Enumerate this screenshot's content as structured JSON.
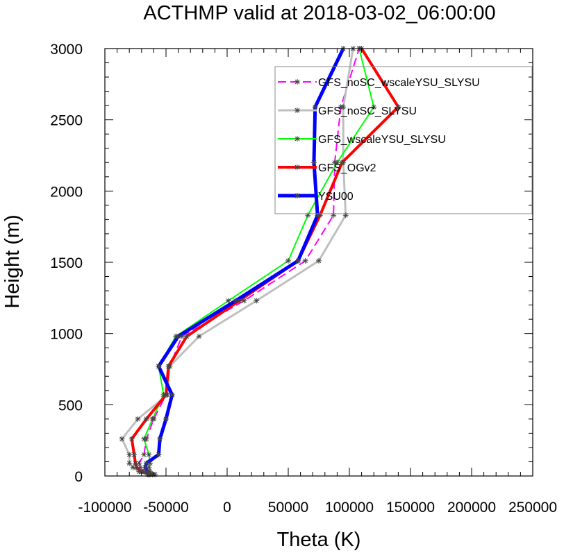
{
  "chart_data": {
    "type": "line",
    "title": "ACTHMP valid at 2018-03-02_06:00:00",
    "xlabel": "Theta (K)",
    "ylabel": "Height (m)",
    "xlim": [
      -100000,
      250000
    ],
    "ylim": [
      0,
      3000
    ],
    "x_ticks": [
      -100000,
      -50000,
      0,
      50000,
      100000,
      150000,
      200000,
      250000
    ],
    "x_tick_labels": [
      "-100000",
      "-50000",
      "0",
      "50000",
      "100000",
      "150000",
      "200000",
      "250000"
    ],
    "y_ticks": [
      0,
      500,
      1000,
      1500,
      2000,
      2500,
      3000
    ],
    "y_tick_labels": [
      "0",
      "500",
      "1000",
      "1500",
      "2000",
      "2500",
      "3000"
    ],
    "grid": false,
    "legend_position": "top-right",
    "heights": [
      10,
      30,
      60,
      90,
      150,
      260,
      400,
      570,
      770,
      980,
      1230,
      1510,
      1830,
      2200,
      2590,
      3000
    ],
    "series": [
      {
        "name": "GFS_noSC_wscaleYSU_SLYSU",
        "color": "#ff00ff",
        "style": "dashed",
        "width": 2,
        "x": [
          -65000,
          -68000,
          -71000,
          -72000,
          -68000,
          -66000,
          -60000,
          -50000,
          -47000,
          -37000,
          14000,
          64000,
          87000,
          88000,
          93000,
          108000
        ]
      },
      {
        "name": "GFS_noSC_SLYSU",
        "color": "#bfbfbf",
        "style": "solid",
        "width": 3,
        "x": [
          -64000,
          -72000,
          -77000,
          -80000,
          -80000,
          -86000,
          -73000,
          -49000,
          -47000,
          -23000,
          24000,
          75000,
          97000,
          95000,
          95000,
          103000
        ]
      },
      {
        "name": "GFS_wscaleYSU_SLYSU",
        "color": "#00ff00",
        "style": "solid",
        "width": 2,
        "x": [
          -59000,
          -63000,
          -64000,
          -63000,
          -64000,
          -68000,
          -61000,
          -52000,
          -56000,
          -42000,
          1000,
          50000,
          66000,
          90000,
          120000,
          108000
        ]
      },
      {
        "name": "GFS_OGv2",
        "color": "#ff0000",
        "style": "solid",
        "width": 4,
        "x": [
          -61000,
          -70000,
          -74000,
          -75000,
          -76000,
          -78000,
          -66000,
          -50000,
          -48000,
          -33000,
          10000,
          58000,
          76000,
          94000,
          140000,
          110000
        ]
      },
      {
        "name": "YSU00",
        "color": "#0000ff",
        "style": "solid",
        "width": 5,
        "x": [
          -63000,
          -65000,
          -67000,
          -66000,
          -56000,
          -55000,
          -50000,
          -45000,
          -56000,
          -40000,
          7000,
          58000,
          74000,
          71000,
          72000,
          95000
        ]
      }
    ]
  }
}
